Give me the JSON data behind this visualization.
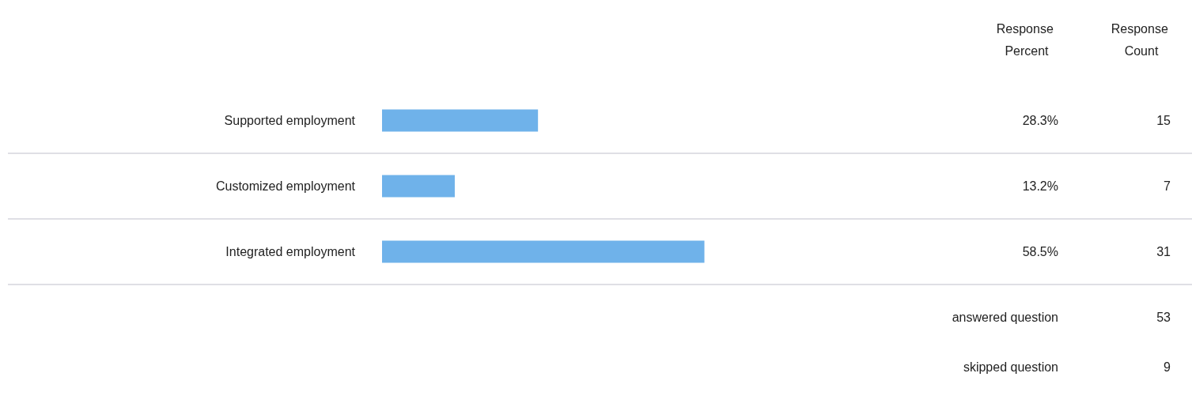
{
  "chart_data": {
    "type": "bar",
    "orientation": "horizontal",
    "categories": [
      "Supported employment",
      "Customized employment",
      "Integrated employment"
    ],
    "values": [
      28.3,
      13.2,
      58.5
    ],
    "value_labels": [
      "28.3%",
      "13.2%",
      "58.5%"
    ],
    "color": "#6fb2ea",
    "tick_labels": "y",
    "grid": false,
    "annotations": [
      "Response Percent",
      "Response Count",
      "15",
      "7",
      "31",
      "answered question",
      "53",
      "skipped question",
      "9"
    ]
  }
}
